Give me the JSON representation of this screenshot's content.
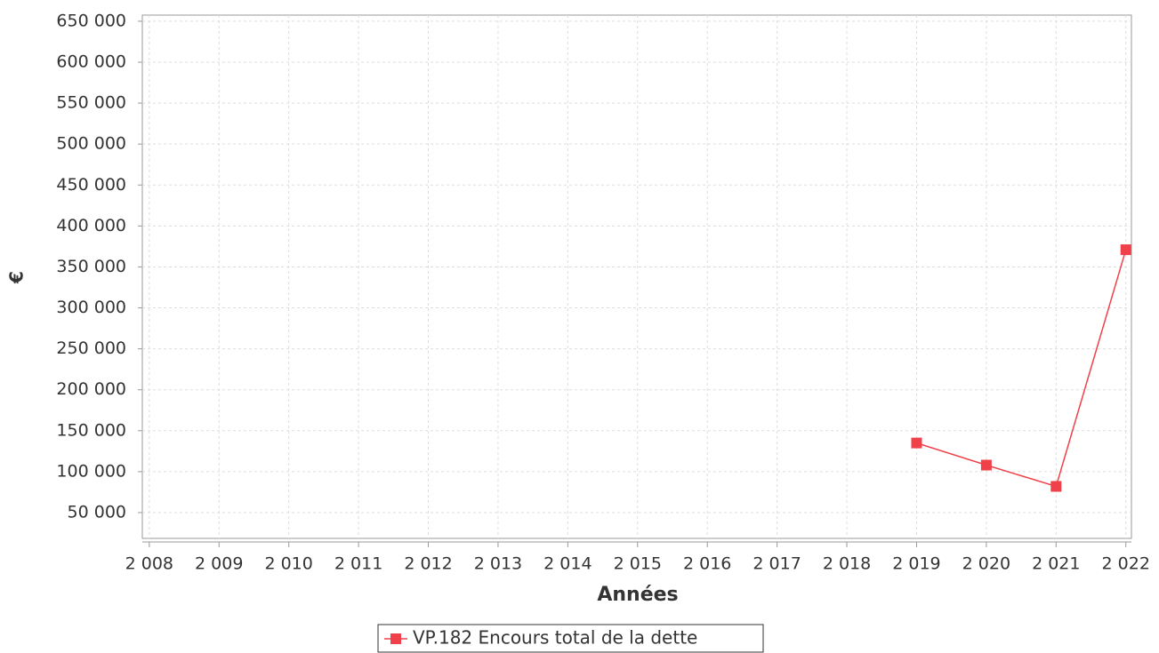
{
  "chart_data": {
    "type": "line",
    "x_label": "Années",
    "y_label": "€",
    "x": [
      2019,
      2020,
      2021,
      2022
    ],
    "series": [
      {
        "name": "VP.182 Encours total de la dette",
        "color": "#f0404a",
        "values": [
          135000,
          108000,
          82000,
          371000
        ]
      }
    ],
    "xlim": [
      2007.9,
      2022.08
    ],
    "xticks": [
      {
        "value": 2008,
        "label": "2 008"
      },
      {
        "value": 2009,
        "label": "2 009"
      },
      {
        "value": 2010,
        "label": "2 010"
      },
      {
        "value": 2011,
        "label": "2 011"
      },
      {
        "value": 2012,
        "label": "2 012"
      },
      {
        "value": 2013,
        "label": "2 013"
      },
      {
        "value": 2014,
        "label": "2 014"
      },
      {
        "value": 2015,
        "label": "2 015"
      },
      {
        "value": 2016,
        "label": "2 016"
      },
      {
        "value": 2017,
        "label": "2 017"
      },
      {
        "value": 2018,
        "label": "2 018"
      },
      {
        "value": 2019,
        "label": "2 019"
      },
      {
        "value": 2020,
        "label": "2 020"
      },
      {
        "value": 2021,
        "label": "2 021"
      },
      {
        "value": 2022,
        "label": "2 022"
      }
    ],
    "ylim": [
      18500,
      657500
    ],
    "yticks": [
      {
        "value": 50000,
        "label": "50 000"
      },
      {
        "value": 100000,
        "label": "100 000"
      },
      {
        "value": 150000,
        "label": "150 000"
      },
      {
        "value": 200000,
        "label": "200 000"
      },
      {
        "value": 250000,
        "label": "250 000"
      },
      {
        "value": 300000,
        "label": "300 000"
      },
      {
        "value": 350000,
        "label": "350 000"
      },
      {
        "value": 400000,
        "label": "400 000"
      },
      {
        "value": 450000,
        "label": "450 000"
      },
      {
        "value": 500000,
        "label": "500 000"
      },
      {
        "value": 550000,
        "label": "550 000"
      },
      {
        "value": 600000,
        "label": "600 000"
      },
      {
        "value": 650000,
        "label": "650 000"
      }
    ],
    "grid": true
  }
}
